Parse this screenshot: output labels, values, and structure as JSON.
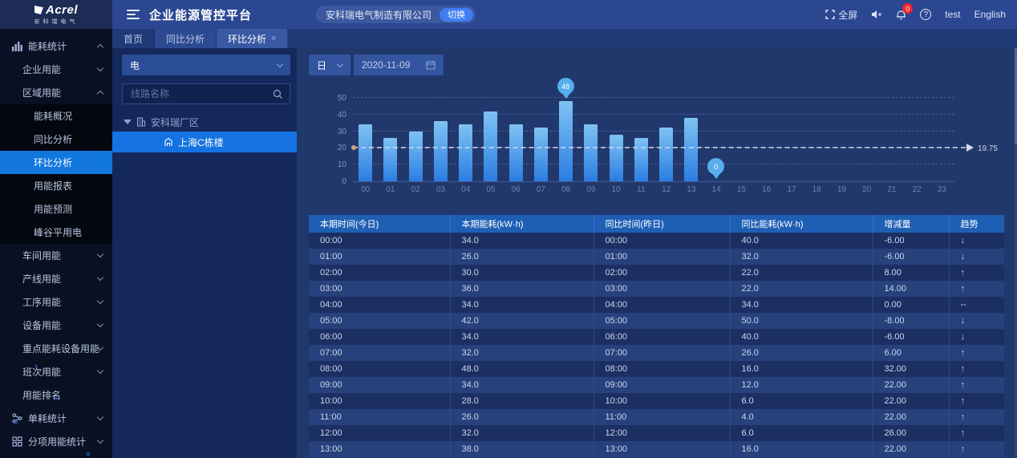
{
  "brand": {
    "name": "Acrel",
    "sub": "安科瑞电气"
  },
  "header": {
    "title": "企业能源管控平台",
    "company": "安科瑞电气制造有限公司",
    "switch_label": "切换",
    "fullscreen_label": "全屏",
    "notification_count": "0",
    "username": "test",
    "language": "English"
  },
  "tabs": [
    {
      "label": "首页",
      "active": false,
      "shaded": false,
      "closable": false
    },
    {
      "label": "同比分析",
      "active": false,
      "shaded": true,
      "closable": false
    },
    {
      "label": "环比分析",
      "active": true,
      "shaded": false,
      "closable": true
    }
  ],
  "sidebar": {
    "items": [
      {
        "label": "能耗统计",
        "level": 0,
        "icon": "bar-chart",
        "expand": "up",
        "active": false
      },
      {
        "label": "企业用能",
        "level": 1,
        "expand": "down",
        "active": false
      },
      {
        "label": "区域用能",
        "level": 1,
        "expand": "up",
        "active": false
      },
      {
        "label": "能耗概况",
        "level": 2,
        "active": false
      },
      {
        "label": "同比分析",
        "level": 2,
        "active": false
      },
      {
        "label": "环比分析",
        "level": 2,
        "active": true
      },
      {
        "label": "用能报表",
        "level": 2,
        "active": false
      },
      {
        "label": "用能预测",
        "level": 2,
        "active": false
      },
      {
        "label": "峰谷平用电",
        "level": 2,
        "active": false
      },
      {
        "label": "车间用能",
        "level": 1,
        "expand": "down",
        "active": false
      },
      {
        "label": "产线用能",
        "level": 1,
        "expand": "down",
        "active": false
      },
      {
        "label": "工序用能",
        "level": 1,
        "expand": "down",
        "active": false
      },
      {
        "label": "设备用能",
        "level": 1,
        "expand": "down",
        "active": false
      },
      {
        "label": "重点能耗设备用能",
        "level": 1,
        "expand": "down",
        "active": false
      },
      {
        "label": "班次用能",
        "level": 1,
        "expand": "down",
        "active": false
      },
      {
        "label": "用能排名",
        "level": 1,
        "active": false
      },
      {
        "label": "单耗统计",
        "level": 0,
        "icon": "share",
        "expand": "down",
        "active": false
      },
      {
        "label": "分项用能统计",
        "level": 0,
        "icon": "grid",
        "expand": "down",
        "active": false
      }
    ]
  },
  "tree_panel": {
    "energy_type": "电",
    "search_placeholder": "线路名称",
    "root": "安科瑞厂区",
    "selected_node": "上海C栋楼"
  },
  "controls": {
    "period": "日",
    "date": "2020-11-09"
  },
  "chart_data": {
    "type": "bar",
    "title": "",
    "xlabel": "",
    "ylabel": "",
    "categories": [
      "00",
      "01",
      "02",
      "03",
      "04",
      "05",
      "06",
      "07",
      "08",
      "09",
      "10",
      "11",
      "12",
      "13",
      "14",
      "15",
      "16",
      "17",
      "18",
      "19",
      "20",
      "21",
      "22",
      "23"
    ],
    "values": [
      34,
      26,
      30,
      36,
      34,
      42,
      34,
      32,
      48,
      34,
      28,
      26,
      32,
      38,
      0,
      0,
      0,
      0,
      0,
      0,
      0,
      0,
      0,
      0
    ],
    "ylim": [
      0,
      50
    ],
    "yticks": [
      0,
      10,
      20,
      30,
      40,
      50
    ],
    "grid": true,
    "average": 19.75,
    "max_marker": {
      "category": "08",
      "value": 48
    },
    "min_marker": {
      "category": "14",
      "value": 0
    },
    "bar_color_top": "#7fc3f3",
    "bar_color_bottom": "#2b7de2"
  },
  "table": {
    "headers": [
      "本期时间(今日)",
      "本期能耗(kW·h)",
      "同比时间(昨日)",
      "同比能耗(kW·h)",
      "增减量",
      "趋势"
    ],
    "rows": [
      {
        "time": "00:00",
        "value": "34.0",
        "ref_time": "00:00",
        "ref_value": "40.0",
        "delta": "-6.00",
        "trend": "down"
      },
      {
        "time": "01:00",
        "value": "26.0",
        "ref_time": "01:00",
        "ref_value": "32.0",
        "delta": "-6.00",
        "trend": "down"
      },
      {
        "time": "02:00",
        "value": "30.0",
        "ref_time": "02:00",
        "ref_value": "22.0",
        "delta": "8.00",
        "trend": "up"
      },
      {
        "time": "03:00",
        "value": "36.0",
        "ref_time": "03:00",
        "ref_value": "22.0",
        "delta": "14.00",
        "trend": "up"
      },
      {
        "time": "04:00",
        "value": "34.0",
        "ref_time": "04:00",
        "ref_value": "34.0",
        "delta": "0.00",
        "trend": "flat"
      },
      {
        "time": "05:00",
        "value": "42.0",
        "ref_time": "05:00",
        "ref_value": "50.0",
        "delta": "-8.00",
        "trend": "down"
      },
      {
        "time": "06:00",
        "value": "34.0",
        "ref_time": "06:00",
        "ref_value": "40.0",
        "delta": "-6.00",
        "trend": "down"
      },
      {
        "time": "07:00",
        "value": "32.0",
        "ref_time": "07:00",
        "ref_value": "26.0",
        "delta": "6.00",
        "trend": "up"
      },
      {
        "time": "08:00",
        "value": "48.0",
        "ref_time": "08:00",
        "ref_value": "16.0",
        "delta": "32.00",
        "trend": "up"
      },
      {
        "time": "09:00",
        "value": "34.0",
        "ref_time": "09:00",
        "ref_value": "12.0",
        "delta": "22.00",
        "trend": "up"
      },
      {
        "time": "10:00",
        "value": "28.0",
        "ref_time": "10:00",
        "ref_value": "6.0",
        "delta": "22.00",
        "trend": "up"
      },
      {
        "time": "11:00",
        "value": "26.0",
        "ref_time": "11:00",
        "ref_value": "4.0",
        "delta": "22.00",
        "trend": "up"
      },
      {
        "time": "12:00",
        "value": "32.0",
        "ref_time": "12:00",
        "ref_value": "6.0",
        "delta": "26.00",
        "trend": "up"
      },
      {
        "time": "13:00",
        "value": "38.0",
        "ref_time": "13:00",
        "ref_value": "16.0",
        "delta": "22.00",
        "trend": "up"
      }
    ]
  },
  "colors": {
    "accent": "#1277dd",
    "header_bg": "#2b4792",
    "sidebar_bg": "#0a1124",
    "table_header_bg": "#1e5fb4",
    "trend_up": "#e06a6a",
    "trend_down": "#49b87e",
    "badge": "#f5222d"
  }
}
